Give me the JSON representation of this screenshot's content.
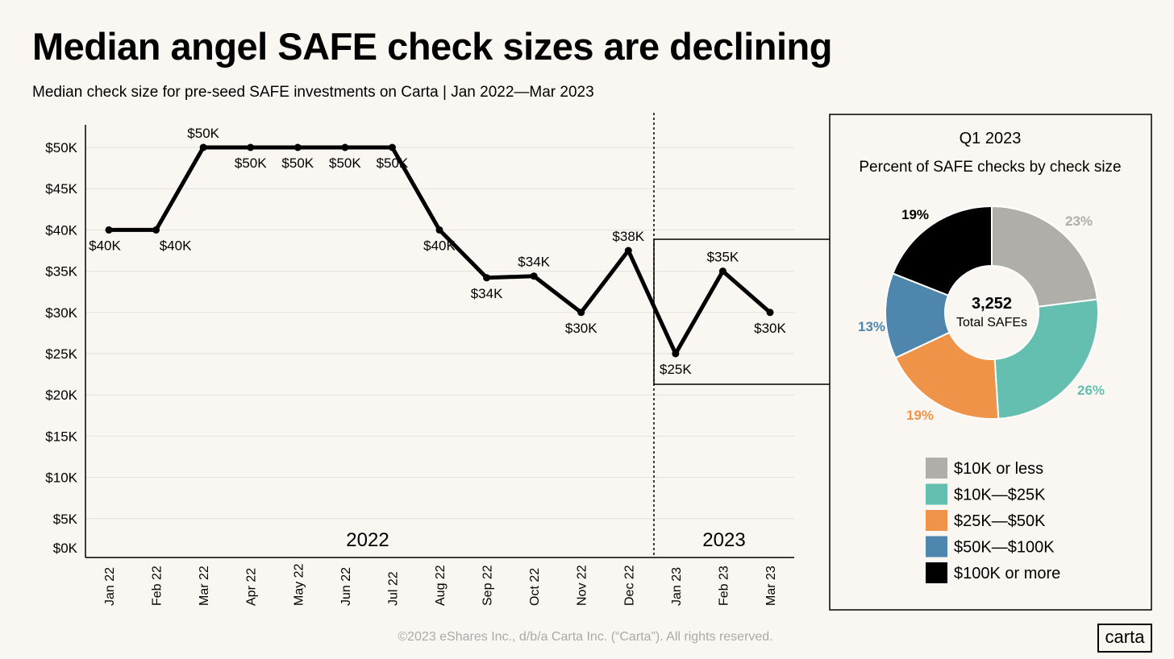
{
  "title": "Median angel SAFE check sizes are declining",
  "subtitle": "Median check size for pre-seed SAFE investments on Carta  |  Jan 2022—Mar 2023",
  "footer": "©2023 eShares Inc., d/b/a Carta Inc. (“Carta”). All rights reserved.",
  "logo": "carta",
  "chart_data": [
    {
      "type": "line",
      "title": "Median check size",
      "xlabel": "",
      "ylabel": "",
      "categories": [
        "Jan 22",
        "Feb 22",
        "Mar 22",
        "Apr 22",
        "May 22",
        "Jun 22",
        "Jul 22",
        "Aug 22",
        "Sep 22",
        "Oct 22",
        "Nov 22",
        "Dec 22",
        "Jan 23",
        "Feb 23",
        "Mar 23"
      ],
      "values": [
        40,
        40,
        50,
        50,
        50,
        50,
        50,
        40,
        34.2,
        34.4,
        30,
        37.5,
        25,
        35,
        30
      ],
      "labels": [
        "$40K",
        "$40K",
        "$50K",
        "$50K",
        "$50K",
        "$50K",
        "$50K",
        "$40K",
        "$34K",
        "$34K",
        "$30K",
        "$38K",
        "$25K",
        "$35K",
        "$30K"
      ],
      "label_pos": [
        "below",
        "below",
        "above",
        "below",
        "below",
        "below",
        "below",
        "below",
        "below",
        "above",
        "below",
        "above",
        "below",
        "above",
        "below"
      ],
      "yticks": [
        0,
        5,
        10,
        15,
        20,
        25,
        30,
        35,
        40,
        45,
        50
      ],
      "ytick_labels": [
        "$0K",
        "$5K",
        "$10K",
        "$15K",
        "$20K",
        "$25K",
        "$30K",
        "$35K",
        "$40K",
        "$45K",
        "$50K"
      ],
      "ylim": [
        0,
        50
      ],
      "grid": true,
      "year_labels": [
        "2022",
        "2023"
      ],
      "color": "#000000"
    },
    {
      "type": "pie",
      "title": "Q1 2023",
      "subtitle": "Percent of SAFE checks by check size",
      "center_value": "3,252",
      "center_label": "Total SAFEs",
      "slices": [
        {
          "name": "$10K or less",
          "value": 23,
          "label": "23%",
          "color": "#b0aea8"
        },
        {
          "name": "$10K—$25K",
          "value": 26,
          "label": "26%",
          "color": "#65bfb0"
        },
        {
          "name": "$25K—$50K",
          "value": 19,
          "label": "19%",
          "color": "#ee9348"
        },
        {
          "name": "$50K—$100K",
          "value": 13,
          "label": "13%",
          "color": "#4f86ae"
        },
        {
          "name": "$100K or more",
          "value": 19,
          "label": "19%",
          "color": "#000000"
        }
      ],
      "legend": "bottom"
    }
  ]
}
